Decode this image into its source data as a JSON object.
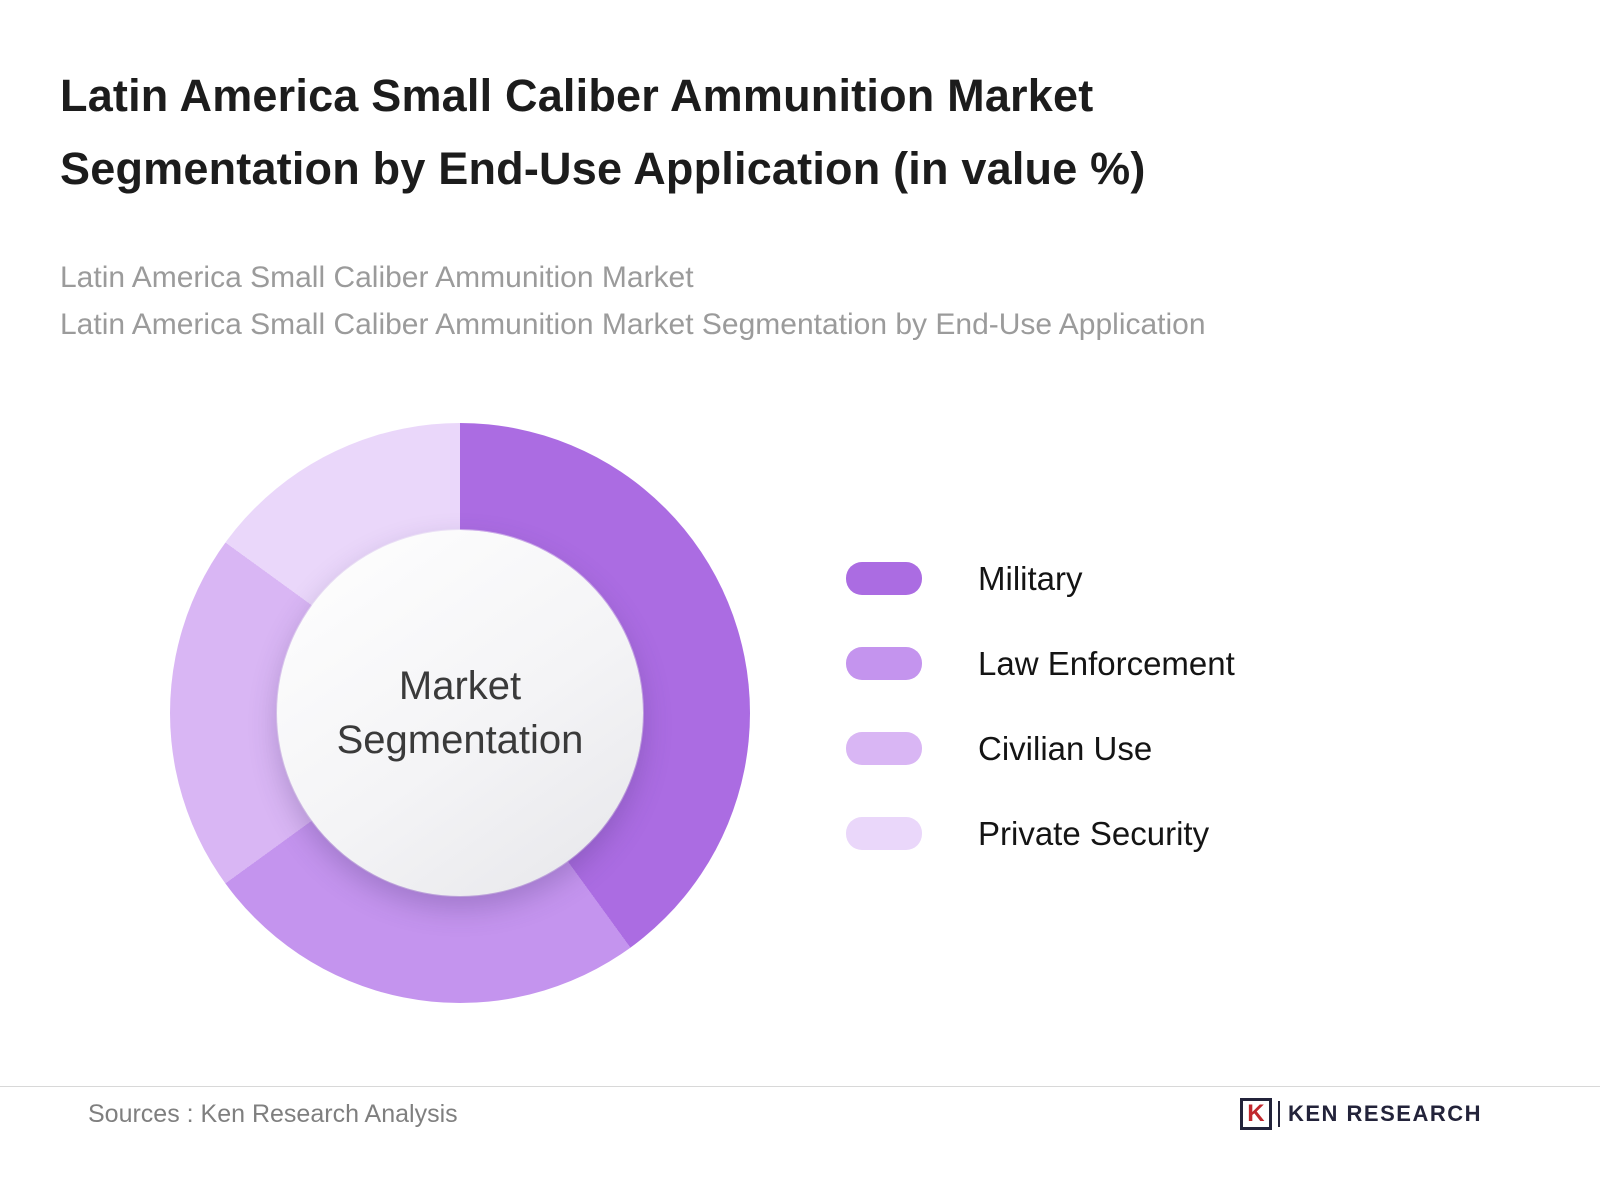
{
  "header": {
    "title": "Latin America Small Caliber Ammunition Market Segmentation by End-Use Application (in value %)",
    "subtitle_line1": "Latin America Small Caliber Ammunition Market",
    "subtitle_line2": "Latin America Small Caliber Ammunition Market Segmentation by End-Use Application"
  },
  "chart_data": {
    "type": "pie",
    "donut": true,
    "title": "Latin America Small Caliber Ammunition Market Segmentation by End-Use Application (in value %)",
    "center_label": "Market Segmentation",
    "legend_position": "right",
    "units": "value %",
    "segments": [
      {
        "label": "Military",
        "value": 40,
        "color": "#ab6ce2"
      },
      {
        "label": "Law Enforcement",
        "value": 25,
        "color": "#c494ee"
      },
      {
        "label": "Civilian Use",
        "value": 20,
        "color": "#d9b6f4"
      },
      {
        "label": "Private Security",
        "value": 15,
        "color": "#ead7fa"
      }
    ]
  },
  "footer": {
    "source": "Sources : Ken Research Analysis",
    "brand": "KEN RESEARCH",
    "brand_initial": "K"
  }
}
